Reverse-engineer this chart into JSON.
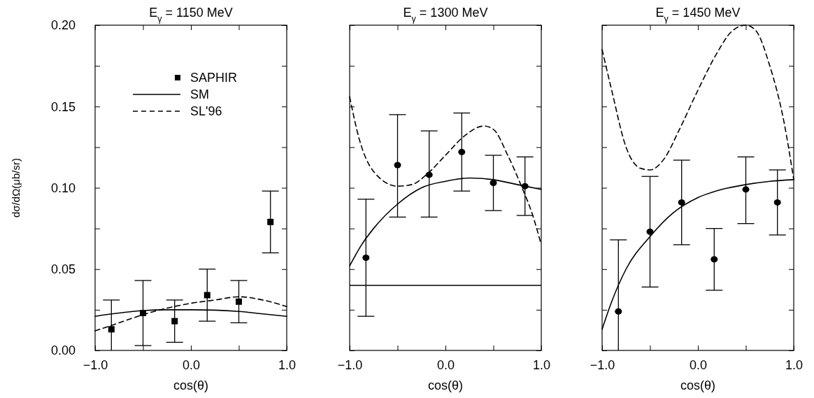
{
  "chart_data": [
    {
      "type": "scatter",
      "title": "E$_{γ}$ = 1150 MeV",
      "xlabel": "cos(θ)",
      "ylabel": "dσ/dΩ(μb/sr)",
      "xlim": [
        -1,
        1
      ],
      "ylim": [
        0,
        0.2
      ],
      "xticks": [
        {
          "value": -1,
          "label": "−1.0"
        },
        {
          "value": -0.5,
          "label": null
        },
        {
          "value": 0,
          "label": "0.0"
        },
        {
          "value": 0.5,
          "label": null
        },
        {
          "value": 1,
          "label": "1.0"
        }
      ],
      "yticks": [
        {
          "value": 0,
          "label": "0.00"
        },
        {
          "value": 0.025,
          "label": null
        },
        {
          "value": 0.05,
          "label": "0.05"
        },
        {
          "value": 0.075,
          "label": null
        },
        {
          "value": 0.1,
          "label": "0.10"
        },
        {
          "value": 0.125,
          "label": null
        },
        {
          "value": 0.15,
          "label": "0.15"
        },
        {
          "value": 0.175,
          "label": null
        },
        {
          "value": 0.2,
          "label": "0.20"
        }
      ],
      "legend": "top right",
      "grid": false,
      "series": [
        {
          "name": "SAPHIR",
          "marker": "square",
          "color": "#000000",
          "x": [
            -0.83,
            -0.5,
            -0.17,
            0.17,
            0.5,
            0.83
          ],
          "values": [
            0.013,
            0.023,
            0.018,
            0.034,
            0.03,
            0.079
          ],
          "errors": [
            [
              0,
              0.031
            ],
            [
              0.003,
              0.043
            ],
            [
              0.005,
              0.031
            ],
            [
              0.018,
              0.05
            ],
            [
              0.017,
              0.043
            ],
            [
              0.06,
              0.098
            ]
          ]
        },
        {
          "name": "SM",
          "type": "line",
          "line_style": "solid",
          "color": "#000000",
          "x": [
            -1,
            -0.75,
            -0.5,
            -0.25,
            0,
            0.25,
            0.5,
            0.75,
            1
          ],
          "values": [
            0.021,
            0.023,
            0.0245,
            0.025,
            0.025,
            0.0248,
            0.024,
            0.0225,
            0.021
          ]
        },
        {
          "name": "SL'96",
          "type": "line",
          "line_style": "dashed",
          "color": "#000000",
          "x": [
            -1,
            -0.75,
            -0.5,
            -0.25,
            0,
            0.25,
            0.5,
            0.75,
            1
          ],
          "values": [
            0.012,
            0.017,
            0.022,
            0.026,
            0.029,
            0.031,
            0.033,
            0.031,
            0.027
          ]
        }
      ]
    },
    {
      "type": "scatter",
      "title": "E$_{γ}$ = 1300 MeV",
      "xlabel": "cos(θ)",
      "xlim": [
        -1,
        1
      ],
      "ylim": [
        0,
        0.2
      ],
      "tick_labels": "x",
      "xticks": [
        {
          "value": -1,
          "label": "−1.0"
        },
        {
          "value": -0.5,
          "label": null
        },
        {
          "value": 0,
          "label": "0.0"
        },
        {
          "value": 0.5,
          "label": null
        },
        {
          "value": 1,
          "label": "1.0"
        }
      ],
      "yticks": [
        {
          "value": 0,
          "label": null
        },
        {
          "value": 0.025,
          "label": null
        },
        {
          "value": 0.05,
          "label": null
        },
        {
          "value": 0.075,
          "label": null
        },
        {
          "value": 0.1,
          "label": null
        },
        {
          "value": 0.125,
          "label": null
        },
        {
          "value": 0.15,
          "label": null
        },
        {
          "value": 0.175,
          "label": null
        },
        {
          "value": 0.2,
          "label": null
        }
      ],
      "ref_lines": [
        {
          "axis": "y",
          "value": 0.04,
          "color": "#000000",
          "line_style": "solid"
        }
      ],
      "series": [
        {
          "marker": "circle",
          "color": "#000000",
          "x": [
            -0.83,
            -0.5,
            -0.17,
            0.17,
            0.5,
            0.83
          ],
          "values": [
            0.057,
            0.114,
            0.108,
            0.122,
            0.103,
            0.101
          ],
          "errors": [
            [
              0.021,
              0.093
            ],
            [
              0.082,
              0.145
            ],
            [
              0.082,
              0.135
            ],
            [
              0.098,
              0.146
            ],
            [
              0.086,
              0.12
            ],
            [
              0.083,
              0.119
            ]
          ]
        },
        {
          "type": "line",
          "line_style": "solid",
          "color": "#000000",
          "x": [
            -1,
            -0.875,
            -0.75,
            -0.5,
            -0.25,
            0,
            0.25,
            0.5,
            0.75,
            1
          ],
          "values": [
            0.052,
            0.065,
            0.075,
            0.09,
            0.1,
            0.104,
            0.106,
            0.105,
            0.102,
            0.099
          ]
        },
        {
          "type": "line",
          "line_style": "dashed",
          "color": "#000000",
          "x": [
            -1,
            -0.9,
            -0.75,
            -0.5,
            -0.35,
            -0.2,
            0,
            0.2,
            0.4,
            0.5,
            0.65,
            0.8,
            0.9,
            1
          ],
          "values": [
            0.156,
            0.13,
            0.11,
            0.101,
            0.102,
            0.108,
            0.12,
            0.132,
            0.138,
            0.136,
            0.12,
            0.1,
            0.085,
            0.065
          ]
        }
      ]
    },
    {
      "type": "scatter",
      "title": "E$_{γ}$ = 1450 MeV",
      "xlabel": "cos(θ)",
      "xlim": [
        -1,
        1
      ],
      "ylim": [
        0,
        0.2
      ],
      "tick_labels": "x",
      "xticks": [
        {
          "value": -1,
          "label": "−1.0"
        },
        {
          "value": -0.5,
          "label": null
        },
        {
          "value": 0,
          "label": "0.0"
        },
        {
          "value": 0.5,
          "label": null
        },
        {
          "value": 1,
          "label": "1.0"
        }
      ],
      "yticks": [
        {
          "value": 0,
          "label": null
        },
        {
          "value": 0.025,
          "label": null
        },
        {
          "value": 0.05,
          "label": null
        },
        {
          "value": 0.075,
          "label": null
        },
        {
          "value": 0.1,
          "label": null
        },
        {
          "value": 0.125,
          "label": null
        },
        {
          "value": 0.15,
          "label": null
        },
        {
          "value": 0.175,
          "label": null
        },
        {
          "value": 0.2,
          "label": null
        }
      ],
      "series": [
        {
          "marker": "circle",
          "color": "#000000",
          "x": [
            -0.83,
            -0.5,
            -0.17,
            0.17,
            0.5,
            0.83
          ],
          "values": [
            0.024,
            0.073,
            0.091,
            0.056,
            0.099,
            0.091
          ],
          "errors": [
            [
              0,
              0.068
            ],
            [
              0.039,
              0.107
            ],
            [
              0.065,
              0.117
            ],
            [
              0.037,
              0.075
            ],
            [
              0.078,
              0.119
            ],
            [
              0.071,
              0.111
            ]
          ]
        },
        {
          "type": "line",
          "line_style": "solid",
          "color": "#000000",
          "x": [
            -1,
            -0.9,
            -0.75,
            -0.5,
            -0.25,
            0,
            0.25,
            0.5,
            0.75,
            1
          ],
          "values": [
            0.013,
            0.03,
            0.05,
            0.07,
            0.085,
            0.094,
            0.099,
            0.102,
            0.104,
            0.105
          ]
        },
        {
          "type": "line",
          "line_style": "dashed",
          "color": "#000000",
          "x": [
            -1,
            -0.9,
            -0.75,
            -0.6,
            -0.5,
            -0.35,
            -0.2,
            0,
            0.2,
            0.35,
            0.5,
            0.6,
            0.75,
            0.9,
            1
          ],
          "values": [
            0.185,
            0.16,
            0.125,
            0.112,
            0.111,
            0.118,
            0.135,
            0.16,
            0.183,
            0.196,
            0.2,
            0.197,
            0.175,
            0.14,
            0.105
          ]
        }
      ]
    }
  ]
}
